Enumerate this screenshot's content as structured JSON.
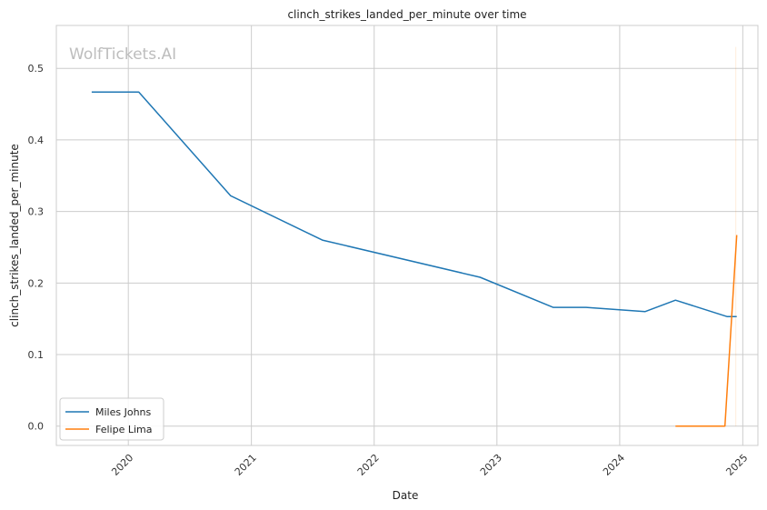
{
  "chart_data": {
    "type": "line",
    "title": "clinch_strikes_landed_per_minute over time",
    "xlabel": "Date",
    "ylabel": "clinch_strikes_landed_per_minute",
    "watermark": "WolfTickets.AI",
    "xlim": [
      "2019-06-01",
      "2025-02-15"
    ],
    "ylim": [
      -0.027,
      0.56
    ],
    "x_ticks": [
      "2020",
      "2021",
      "2022",
      "2023",
      "2024",
      "2025"
    ],
    "y_ticks": [
      "0.0",
      "0.1",
      "0.2",
      "0.3",
      "0.4",
      "0.5"
    ],
    "grid": true,
    "legend_position": "lower-left",
    "series": [
      {
        "name": "Miles Johns",
        "color": "#1f77b4",
        "points": [
          [
            "2019-09-14",
            0.467
          ],
          [
            "2020-02-01",
            0.467
          ],
          [
            "2020-10-31",
            0.322
          ],
          [
            "2021-07-31",
            0.26
          ],
          [
            "2022-11-12",
            0.208
          ],
          [
            "2023-06-17",
            0.166
          ],
          [
            "2023-09-23",
            0.166
          ],
          [
            "2024-03-16",
            0.16
          ],
          [
            "2024-06-15",
            0.176
          ],
          [
            "2024-11-16",
            0.153
          ],
          [
            "2024-12-14",
            0.153
          ]
        ]
      },
      {
        "name": "Felipe Lima",
        "color": "#ff7f0e",
        "points": [
          [
            "2024-06-15",
            0.0
          ],
          [
            "2024-11-09",
            0.0
          ],
          [
            "2024-12-14",
            0.267
          ]
        ]
      }
    ]
  }
}
